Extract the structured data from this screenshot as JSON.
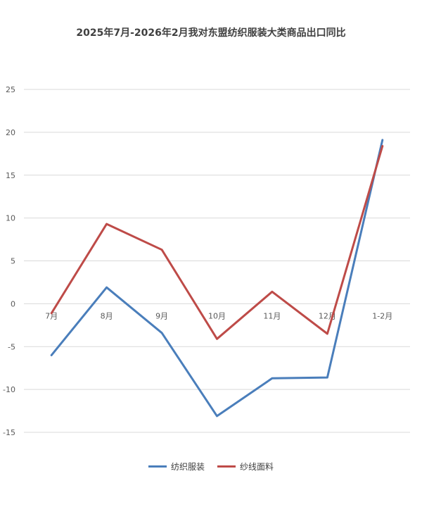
{
  "chart_data": {
    "type": "line",
    "title": "2025年7月-2026年2月我对东盟纺织服装大类商品出口同比",
    "categories": [
      "7月",
      "8月",
      "9月",
      "10月",
      "11月",
      "12月",
      "1-2月"
    ],
    "ylim": [
      -15,
      25
    ],
    "yticks": [
      -15,
      -10,
      -5,
      0,
      5,
      10,
      15,
      20,
      25
    ],
    "grid": true,
    "legend_position": "bottom",
    "series": [
      {
        "name": "纺织服装",
        "color": "#4a7ebb",
        "values": [
          -6.0,
          1.9,
          -3.4,
          -13.1,
          -8.7,
          -8.6,
          19.1
        ]
      },
      {
        "name": "纱线面料",
        "color": "#be4b48",
        "values": [
          -1.1,
          9.3,
          6.3,
          -4.1,
          1.4,
          -3.5,
          18.4
        ]
      }
    ]
  }
}
